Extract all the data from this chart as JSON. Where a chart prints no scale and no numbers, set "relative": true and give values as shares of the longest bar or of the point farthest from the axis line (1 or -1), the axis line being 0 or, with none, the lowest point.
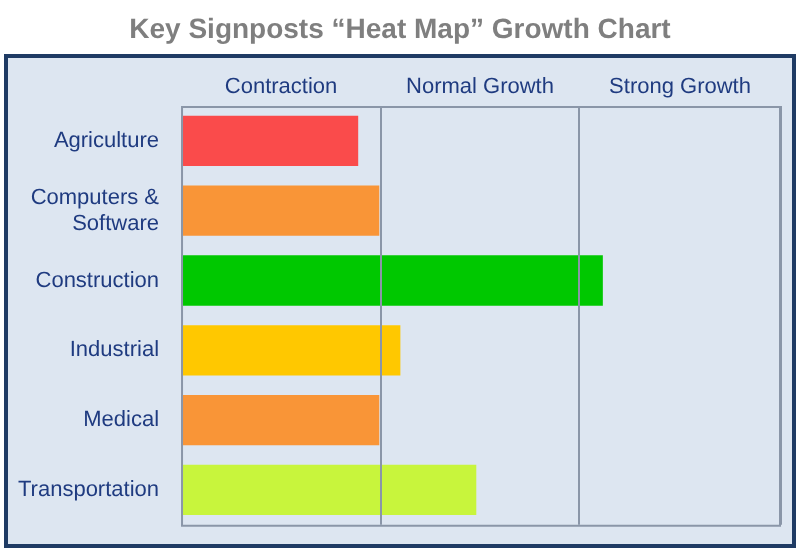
{
  "chart_data": {
    "type": "bar",
    "title": "Key Signposts “Heat Map” Growth Chart",
    "orientation": "horizontal",
    "relative": true,
    "categories": [
      "Agriculture",
      "Computers & Software",
      "Construction",
      "Industrial",
      "Medical",
      "Transportation"
    ],
    "values": [
      0.42,
      0.47,
      1,
      0.52,
      0.47,
      0.7
    ],
    "colors": [
      "#fa4b4b",
      "#f99537",
      "#00c800",
      "#ffc800",
      "#f99537",
      "#c8f53c"
    ],
    "ref_lines": [
      {
        "axis": "x",
        "value": 0.47
      },
      {
        "axis": "x",
        "value": 0.94
      },
      {
        "axis": "x",
        "value": 1.42
      }
    ],
    "annotations": [
      "Contraction",
      "Normal Growth",
      "Strong Growth"
    ],
    "legend": false
  }
}
